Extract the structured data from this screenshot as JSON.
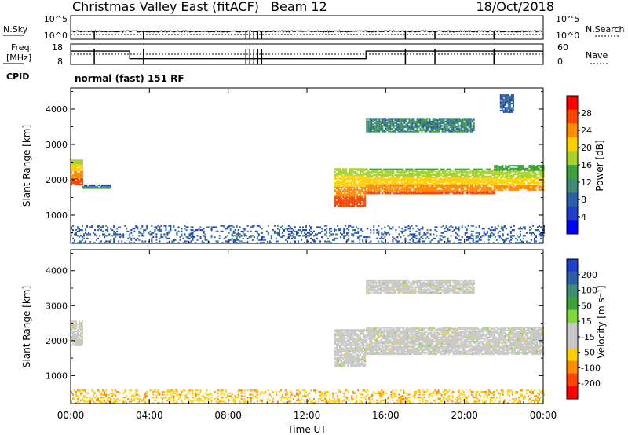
{
  "header": {
    "title": "Christmas Valley East (fitACF)",
    "beam": "Beam 12",
    "date": "18/Oct/2018"
  },
  "strips": {
    "nsky_label": "N.Sky",
    "nsearch_label": "N.Search",
    "noise_ticks": [
      "10^5",
      "10^0"
    ],
    "freq_label_1": "Freq.",
    "freq_label_2": "[MHz]",
    "freq_ticks": [
      "18",
      "8"
    ],
    "nave_label": "Nave",
    "nave_ticks": [
      "60",
      "0"
    ],
    "cpid_label": "CPID",
    "cpid_text": "normal (fast) 151 RF"
  },
  "power_panel": {
    "ylabel": "Slant Range [km]",
    "colorbar_label": "Power [dB]",
    "colorbar_ticks": [
      "28",
      "24",
      "20",
      "16",
      "12",
      "8",
      "4"
    ],
    "colorbar_colors": [
      "#ff0000",
      "#ff4400",
      "#ff8c00",
      "#ffd000",
      "#a6d22a",
      "#3fa13a",
      "#3f8c78",
      "#2d5fa8",
      "#1f3fc8",
      "#0000ff"
    ]
  },
  "velocity_panel": {
    "ylabel": "Slant Range [km]",
    "colorbar_label": "Velocity [m s⁻¹]",
    "colorbar_ticks": [
      "200",
      "100",
      "50",
      "15",
      "-15",
      "-50",
      "-100",
      "-200"
    ],
    "colorbar_colors": [
      "#1f3fc8",
      "#2d5fa8",
      "#3f8c78",
      "#3fa13a",
      "#7fd83a",
      "#c8c8c8",
      "#c8c8c8",
      "#ffd000",
      "#ff8c00",
      "#ff4400",
      "#ff0000"
    ]
  },
  "x_axis": {
    "label": "Time UT",
    "ticks": [
      "00:00",
      "04:00",
      "08:00",
      "12:00",
      "16:00",
      "20:00",
      "00:00"
    ]
  },
  "chart_data": {
    "type": "heatmap",
    "xlabel": "Time UT",
    "ylabel": "Slant Range [km]",
    "xlim_hours": [
      0,
      24
    ],
    "ylim_km": [
      200,
      4600
    ],
    "yticks": [
      1000,
      2000,
      3000,
      4000
    ],
    "frequency_steps": [
      {
        "t": 0.0,
        "freq": 14.5
      },
      {
        "t": 3.0,
        "freq": 10.8
      },
      {
        "t": 15.0,
        "freq": 14.5
      }
    ],
    "power_regions": [
      {
        "t0": 0.0,
        "t1": 0.6,
        "r0": 1850,
        "r1": 2550,
        "power_db": 22
      },
      {
        "t0": 0.6,
        "t1": 2.0,
        "r0": 1750,
        "r1": 1850,
        "power_db": 8
      },
      {
        "t0": 13.4,
        "t1": 15.0,
        "r0": 1250,
        "r1": 2300,
        "power_db": 22
      },
      {
        "t0": 15.0,
        "t1": 21.5,
        "r0": 1600,
        "r1": 2300,
        "power_db": 20
      },
      {
        "t0": 21.5,
        "t1": 24.0,
        "r0": 1700,
        "r1": 2400,
        "power_db": 18
      },
      {
        "t0": 15.0,
        "t1": 20.5,
        "r0": 3350,
        "r1": 3750,
        "power_db": 10
      },
      {
        "t0": 21.8,
        "t1": 22.5,
        "r0": 3900,
        "r1": 4400,
        "power_db": 6
      },
      {
        "t0": 0.0,
        "t1": 24.0,
        "r0": 200,
        "r1": 700,
        "power_db": 6
      }
    ],
    "velocity_regions": [
      {
        "t0": 0.0,
        "t1": 0.6,
        "r0": 1850,
        "r1": 2550,
        "velocity": 0
      },
      {
        "t0": 13.4,
        "t1": 15.0,
        "r0": 1250,
        "r1": 2300,
        "velocity": 0
      },
      {
        "t0": 15.0,
        "t1": 24.0,
        "r0": 1600,
        "r1": 2400,
        "velocity": 0
      },
      {
        "t0": 15.0,
        "t1": 20.5,
        "r0": 3350,
        "r1": 3750,
        "velocity": 0
      },
      {
        "t0": 0.0,
        "t1": 24.0,
        "r0": 200,
        "r1": 600,
        "velocity": -30
      }
    ]
  }
}
